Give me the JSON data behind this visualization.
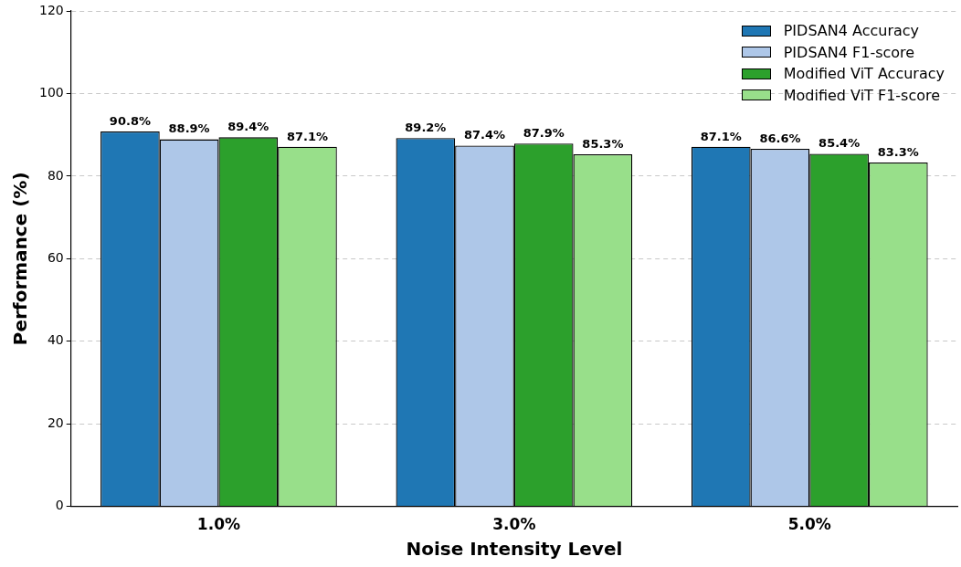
{
  "chart_data": {
    "type": "bar",
    "xlabel": "Noise Intensity Level",
    "ylabel": "Performance (%)",
    "categories": [
      "1.0%",
      "3.0%",
      "5.0%"
    ],
    "series": [
      {
        "name": "PIDSAN4 Accuracy",
        "color": "#1f77b4",
        "values": [
          90.8,
          89.2,
          87.1
        ],
        "value_labels": [
          "90.8%",
          "89.2%",
          "87.1%"
        ]
      },
      {
        "name": "PIDSAN4 F1-score",
        "color": "#aec7e8",
        "values": [
          88.9,
          87.4,
          86.6
        ],
        "value_labels": [
          "88.9%",
          "87.4%",
          "86.6%"
        ]
      },
      {
        "name": "Modified ViT Accuracy",
        "color": "#2ca02c",
        "values": [
          89.4,
          87.9,
          85.4
        ],
        "value_labels": [
          "89.4%",
          "87.9%",
          "85.4%"
        ]
      },
      {
        "name": "Modified ViT F1-score",
        "color": "#98df8a",
        "values": [
          87.1,
          85.3,
          83.3
        ],
        "value_labels": [
          "87.1%",
          "85.3%",
          "83.3%"
        ]
      }
    ],
    "ylim": [
      0,
      120
    ],
    "yticks": [
      0,
      20,
      40,
      60,
      80,
      100,
      120
    ],
    "grid": "y",
    "legend": "top right"
  }
}
